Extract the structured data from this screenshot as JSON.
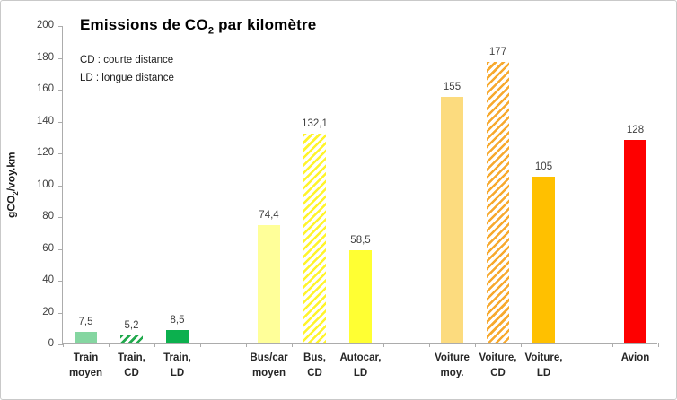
{
  "chart_data": {
    "type": "bar",
    "title": "Emissions de CO2 par kilomètre",
    "title_parts": {
      "pre": "Emissions de CO",
      "sub": "2",
      "post": " par kilomètre"
    },
    "notes": [
      "CD : courte distance",
      "LD : longue distance"
    ],
    "ylabel": "gCO2/voy.km",
    "ylabel_parts": {
      "pre": "gCO",
      "sub": "2",
      "post": "/voy.km"
    },
    "xlabel": "",
    "ylim": [
      0,
      200
    ],
    "ytick_step": 20,
    "grid": false,
    "legend_position": "none",
    "slots": 13,
    "categories": [
      "Train moyen",
      "Train, CD",
      "Train, LD",
      "Bus/car moyen",
      "Bus, CD",
      "Autocar, LD",
      "Voiture moy.",
      "Voiture, CD",
      "Voiture, LD",
      "Avion"
    ],
    "values": [
      7.5,
      5.2,
      8.5,
      74.4,
      132.1,
      58.5,
      155,
      177,
      105,
      128
    ],
    "bars": [
      {
        "id": "train-moyen",
        "slot": 0,
        "label_lines": [
          "Train",
          "moyen"
        ],
        "value": 7.5,
        "value_label": "7,5",
        "color": "#85d6a1",
        "hatch": false
      },
      {
        "id": "train-cd",
        "slot": 1,
        "label_lines": [
          "Train,",
          "CD"
        ],
        "value": 5.2,
        "value_label": "5,2",
        "color": "#21a94d",
        "hatch": true
      },
      {
        "id": "train-ld",
        "slot": 2,
        "label_lines": [
          "Train,",
          "LD"
        ],
        "value": 8.5,
        "value_label": "8,5",
        "color": "#0cb04e",
        "hatch": false
      },
      {
        "id": "bus-car-moyen",
        "slot": 4,
        "label_lines": [
          "Bus/car",
          "moyen"
        ],
        "value": 74.4,
        "value_label": "74,4",
        "color": "#ffff99",
        "hatch": false
      },
      {
        "id": "bus-cd",
        "slot": 5,
        "label_lines": [
          "Bus,",
          "CD"
        ],
        "value": 132.1,
        "value_label": "132,1",
        "color": "#fff42b",
        "hatch": true
      },
      {
        "id": "autocar-ld",
        "slot": 6,
        "label_lines": [
          "Autocar,",
          "LD"
        ],
        "value": 58.5,
        "value_label": "58,5",
        "color": "#ffff33",
        "hatch": false
      },
      {
        "id": "voiture-moy",
        "slot": 8,
        "label_lines": [
          "Voiture",
          "moy."
        ],
        "value": 155,
        "value_label": "155",
        "color": "#fcdb7e",
        "hatch": false
      },
      {
        "id": "voiture-cd",
        "slot": 9,
        "label_lines": [
          "Voiture,",
          "CD"
        ],
        "value": 177,
        "value_label": "177",
        "color": "#f7a92e",
        "hatch": true
      },
      {
        "id": "voiture-ld",
        "slot": 10,
        "label_lines": [
          "Voiture,",
          "LD"
        ],
        "value": 105,
        "value_label": "105",
        "color": "#ffc000",
        "hatch": false
      },
      {
        "id": "avion",
        "slot": 12,
        "label_lines": [
          "Avion"
        ],
        "value": 128,
        "value_label": "128",
        "color": "#fe0000",
        "hatch": false
      }
    ],
    "colors": {
      "axis": "#acacac",
      "tick_label": "#404040",
      "value_label": "#404040",
      "x_label": "#262626",
      "background": "#ffffff"
    }
  }
}
